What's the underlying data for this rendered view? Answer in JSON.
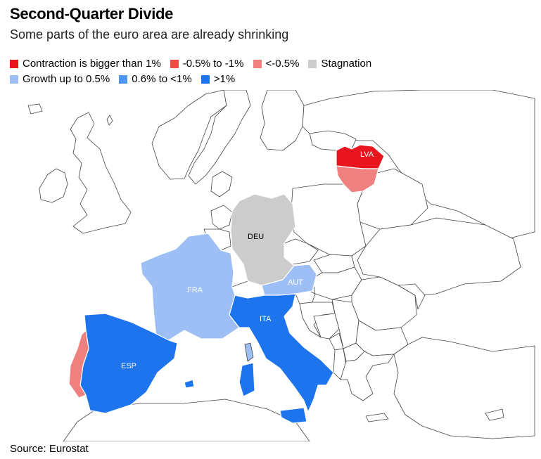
{
  "title": "Second-Quarter Divide",
  "subtitle": "Some parts of the euro area are already shrinking",
  "legend": [
    {
      "label": "Contraction is bigger than 1%",
      "color": "#e8151e"
    },
    {
      "label": "-0.5% to -1%",
      "color": "#ef4b45"
    },
    {
      "label": "<-0.5%",
      "color": "#f08080"
    },
    {
      "label": "Stagnation",
      "color": "#cccccc"
    },
    {
      "label": "Growth up to 0.5%",
      "color": "#9dbff6"
    },
    {
      "label": "0.6% to <1%",
      "color": "#4d97f2"
    },
    {
      "label": ">1%",
      "color": "#1d74ec"
    }
  ],
  "countries": {
    "LVA": {
      "label": "LVA",
      "category": "Contraction is bigger than 1%"
    },
    "LTU": {
      "label": "",
      "category": "<-0.5%"
    },
    "DEU": {
      "label": "DEU",
      "category": "Stagnation"
    },
    "FRA": {
      "label": "FRA",
      "category": "Growth up to 0.5%"
    },
    "AUT": {
      "label": "AUT",
      "category": "Growth up to 0.5%"
    },
    "ITA": {
      "label": "ITA",
      "category": ">1%"
    },
    "ESP": {
      "label": "ESP",
      "category": ">1%"
    },
    "PRT": {
      "label": "",
      "category": "<-0.5%"
    }
  },
  "source": "Source: Eurostat"
}
